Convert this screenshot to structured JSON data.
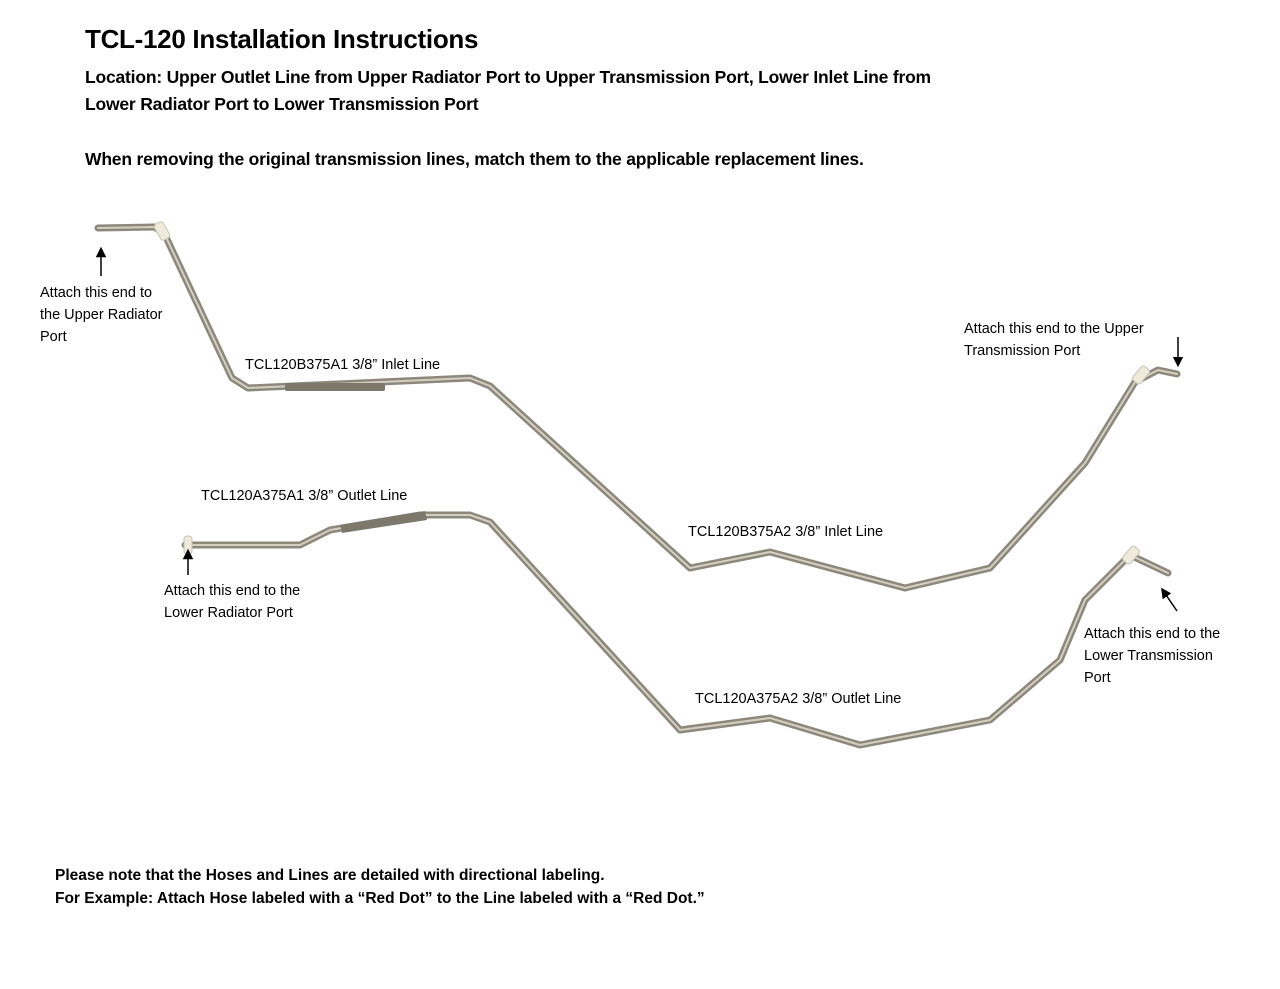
{
  "title": "TCL-120 Installation Instructions",
  "location_line1": "Location: Upper Outlet Line from Upper Radiator Port to Upper Transmission Port, Lower Inlet Line from",
  "location_line2": "Lower Radiator Port to Lower Transmission Port",
  "instruction": "When removing the original transmission lines, match them to the applicable replacement lines.",
  "callouts": {
    "upper_radiator": [
      "Attach this end to",
      "the Upper Radiator",
      "Port"
    ],
    "upper_transmission": [
      "Attach this end to the Upper",
      "Transmission Port"
    ],
    "lower_radiator": [
      "Attach this end to the",
      "Lower Radiator Port"
    ],
    "lower_transmission": [
      "Attach this end to the",
      "Lower Transmission",
      "Port"
    ]
  },
  "parts": {
    "b_a1": "TCL120B375A1  3/8” Inlet Line",
    "b_a2": "TCL120B375A2  3/8” Inlet Line",
    "a_a1": "TCL120A375A1  3/8” Outlet Line",
    "a_a2": "TCL120A375A2  3/8” Outlet Line"
  },
  "notes": [
    "Please note that the Hoses and Lines are detailed with directional labeling.",
    "For Example: Attach Hose labeled with a “Red Dot” to the Line labeled with a “Red Dot.”"
  ],
  "colors": {
    "pipe": "#9a9486",
    "pipe_highlight": "#d8d4c8",
    "clip": "#efeadb"
  }
}
